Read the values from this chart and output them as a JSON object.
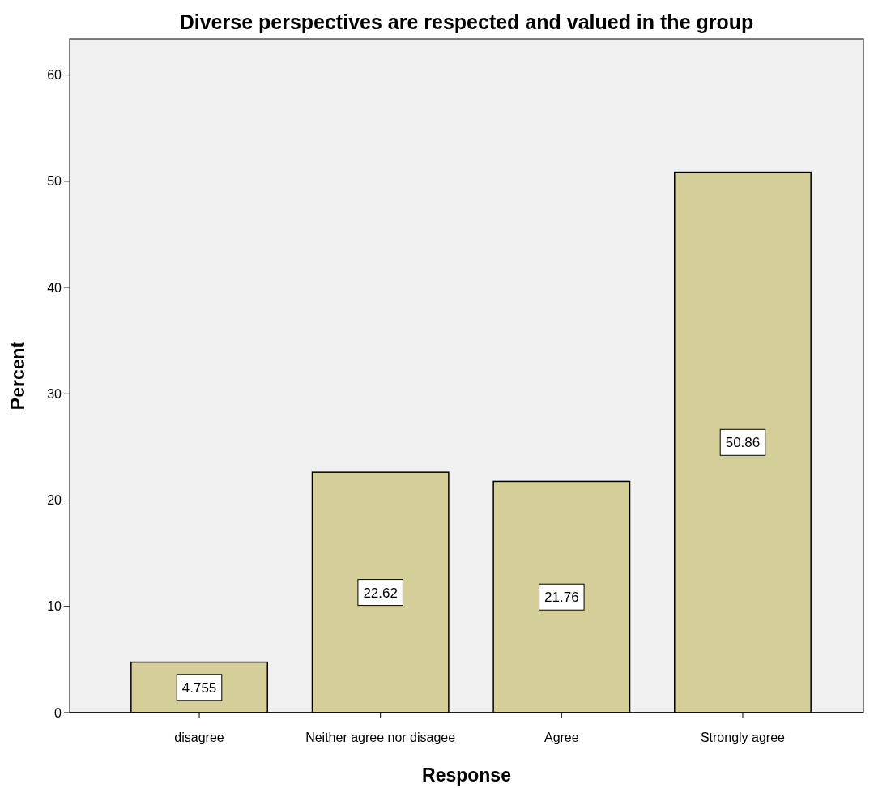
{
  "chart_data": {
    "type": "bar",
    "title": "Diverse perspectives are respected and valued in the group",
    "xlabel": "Response",
    "ylabel": "Percent",
    "categories": [
      "disagree",
      "Neither agree nor disagee",
      "Agree",
      "Strongly agree"
    ],
    "values": [
      4.755,
      22.62,
      21.76,
      50.86
    ],
    "color": "#d4cf98",
    "ylim": [
      0,
      63.4
    ],
    "yticks": [
      0,
      10,
      20,
      30,
      40,
      50,
      60
    ],
    "data_labels": true
  }
}
